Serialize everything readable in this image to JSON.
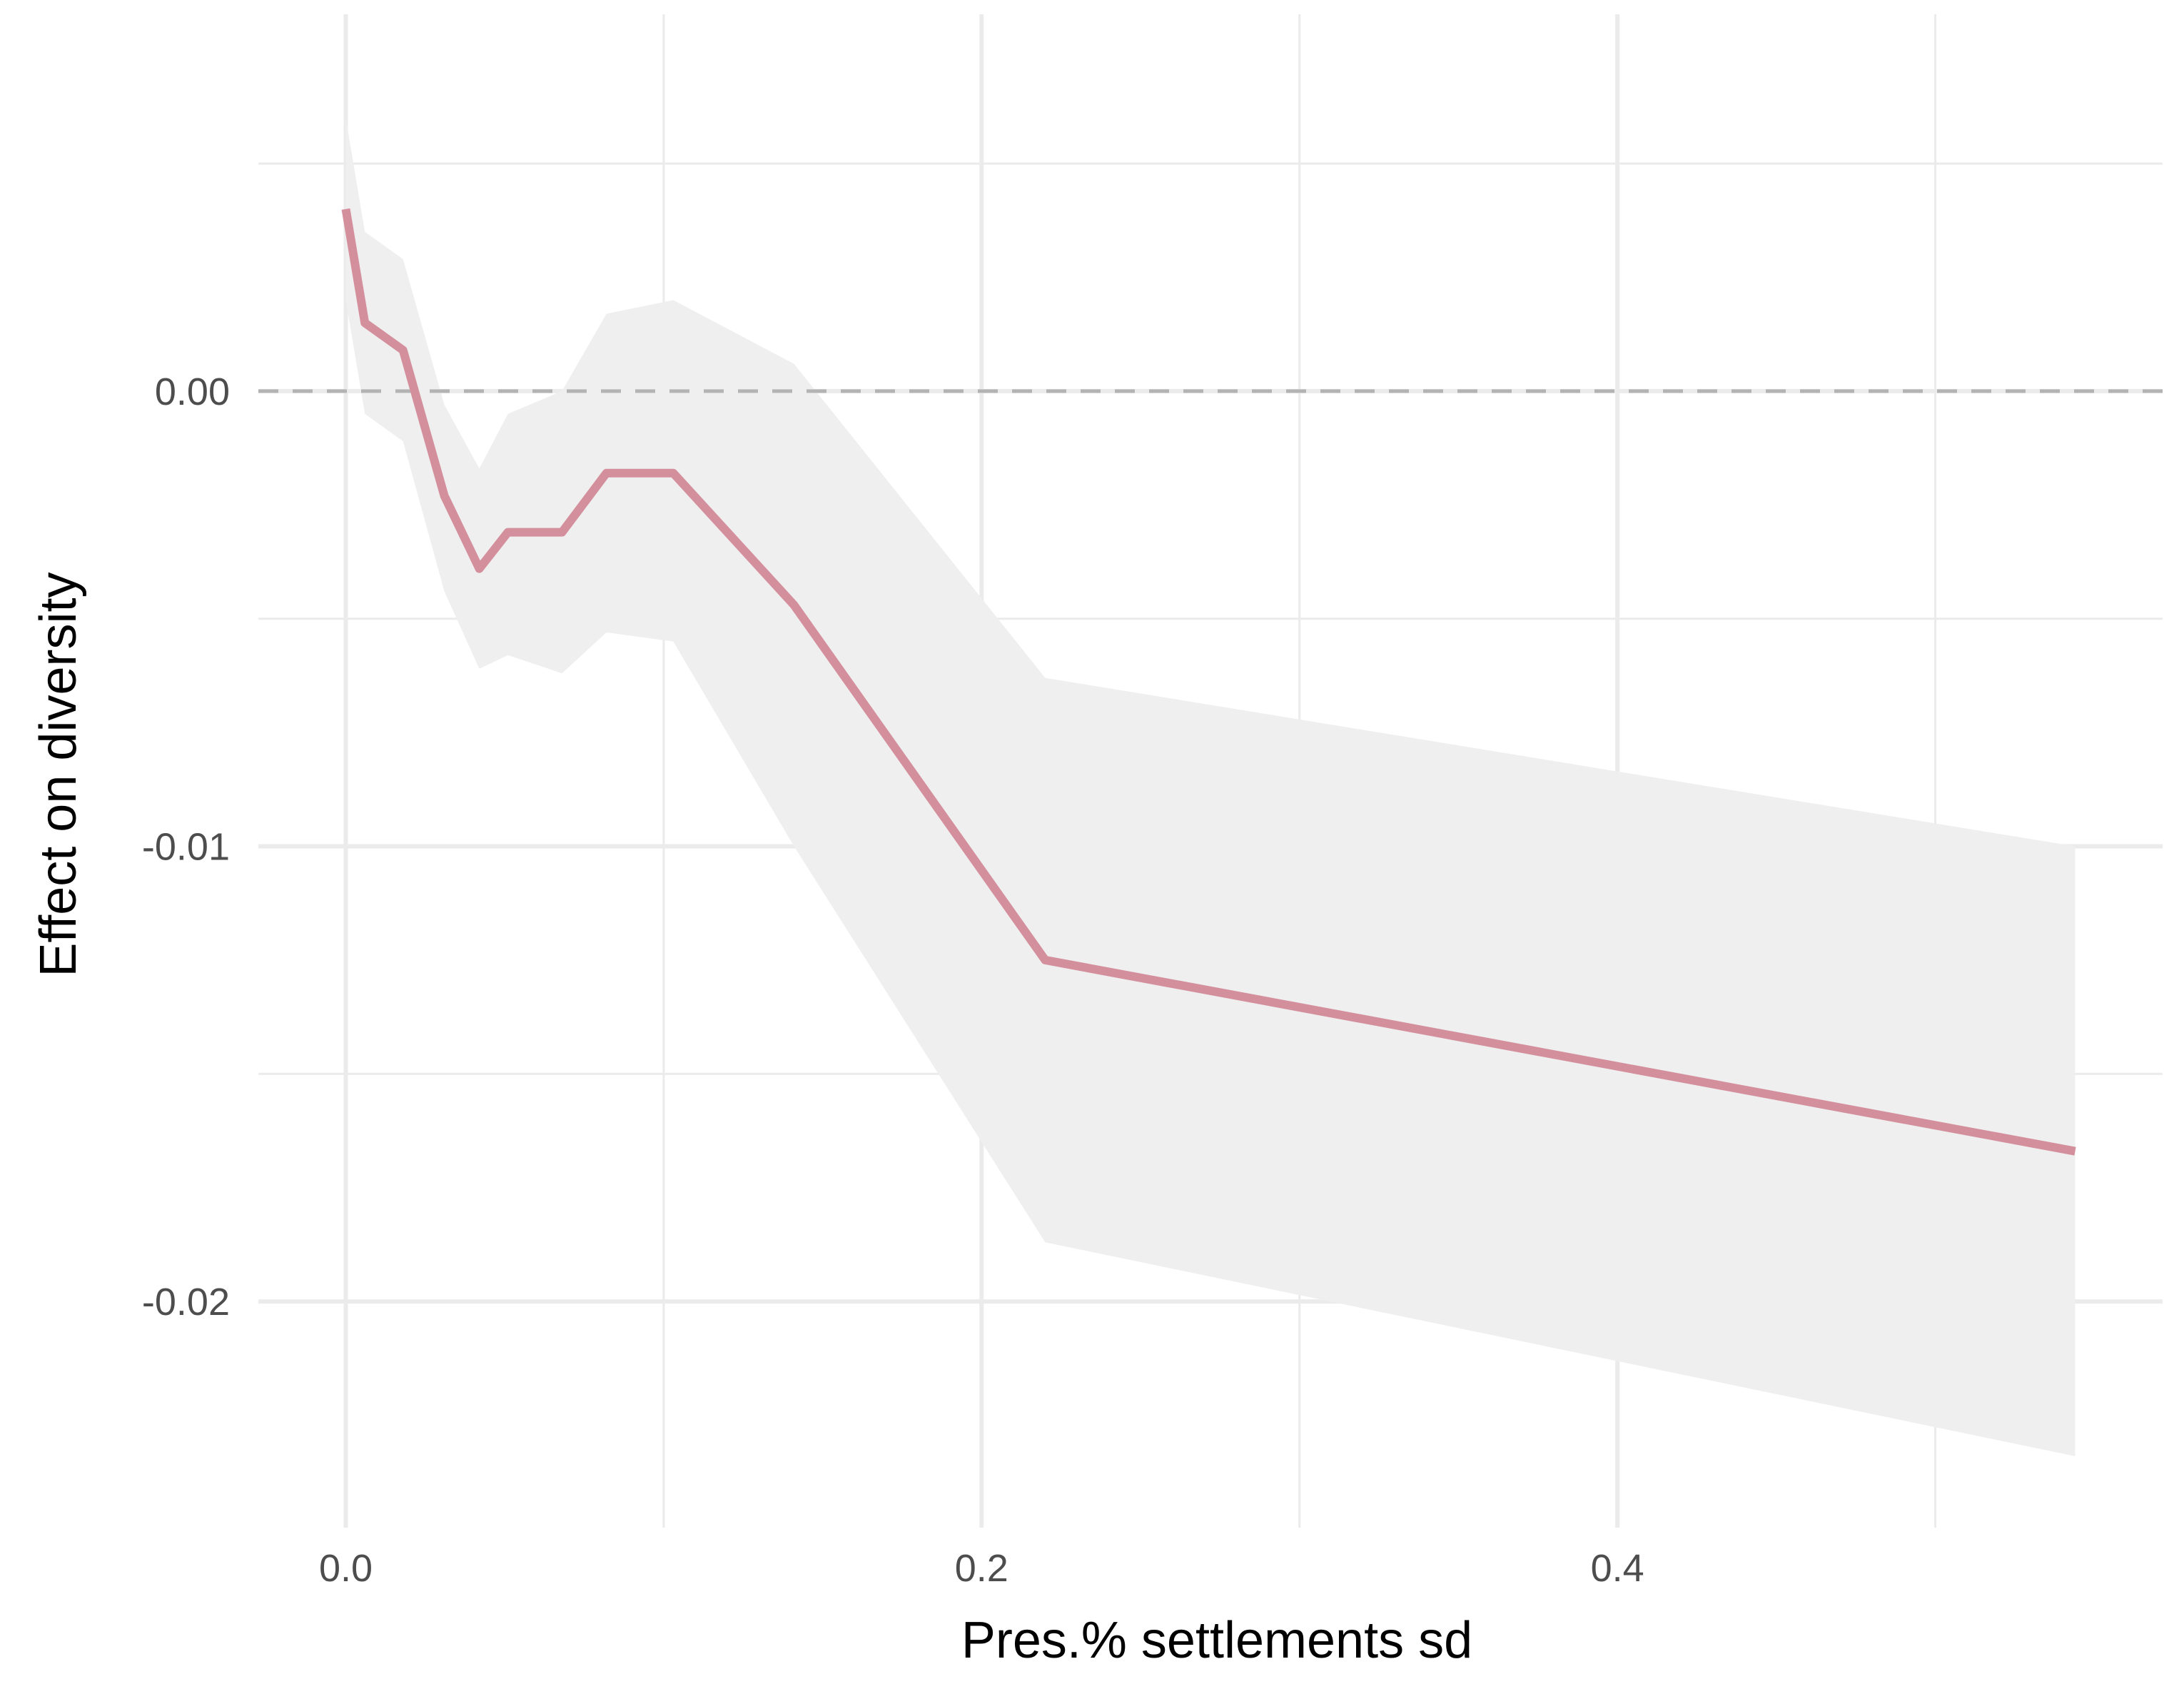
{
  "chart_data": {
    "type": "line",
    "xlabel": "Pres.% settlements sd",
    "ylabel": "Effect on diversity",
    "xlim": [
      -0.0275,
      0.5715
    ],
    "ylim": [
      -0.02497,
      0.00828
    ],
    "x_ticks": [
      {
        "value": 0.0,
        "label": "0.0"
      },
      {
        "value": 0.2,
        "label": "0.2"
      },
      {
        "value": 0.4,
        "label": "0.4"
      }
    ],
    "x_minor": [
      0.1,
      0.3,
      0.5
    ],
    "y_ticks": [
      {
        "value": 0.0,
        "label": "0.00"
      },
      {
        "value": -0.01,
        "label": "-0.01"
      },
      {
        "value": -0.02,
        "label": "-0.02"
      }
    ],
    "y_minor": [
      0.005,
      -0.005,
      -0.015
    ],
    "grid": true,
    "reference_line": {
      "y": 0,
      "style": "dashed",
      "color": "#b3b3b3"
    },
    "colors": {
      "line": "#d48f9d",
      "ribbon": "#efefef",
      "grid": "#ebebeb"
    },
    "series": [
      {
        "x": [
          0.0,
          0.006,
          0.018,
          0.031,
          0.042,
          0.051,
          0.068,
          0.082,
          0.103,
          0.141,
          0.22,
          0.544
        ],
        "y": [
          0.004,
          0.0015,
          0.0009,
          -0.0023,
          -0.0039,
          -0.0031,
          -0.0031,
          -0.0018,
          -0.0018,
          -0.0047,
          -0.0125,
          -0.0167
        ],
        "lower": [
          0.002,
          -0.0005,
          -0.0011,
          -0.0044,
          -0.0061,
          -0.0058,
          -0.0062,
          -0.0053,
          -0.0055,
          -0.01,
          -0.0187,
          -0.0234
        ],
        "upper": [
          0.006,
          0.0035,
          0.0029,
          -0.0003,
          -0.0017,
          -0.0005,
          0.0,
          0.0017,
          0.002,
          0.0006,
          -0.0063,
          -0.01
        ]
      }
    ]
  }
}
